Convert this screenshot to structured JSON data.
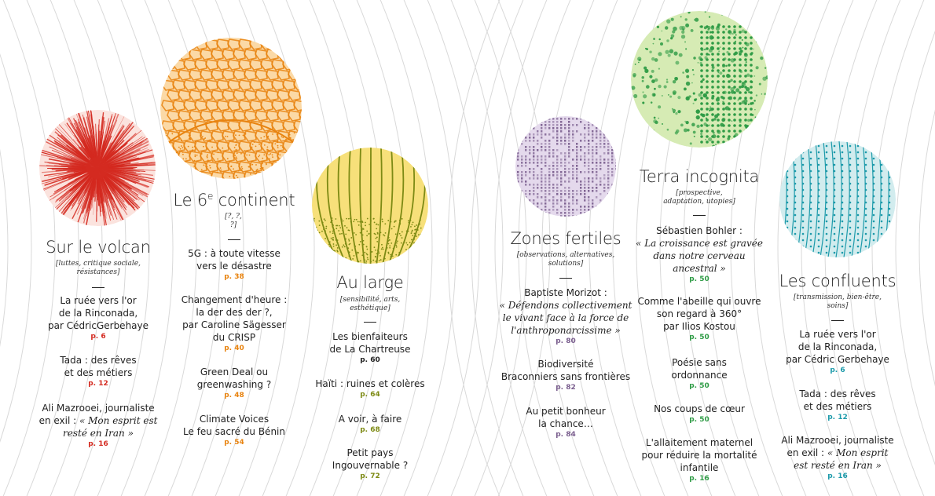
{
  "colors": {
    "volcan": "#d42a20",
    "continent": "#e8830f",
    "large": "#7d8a14",
    "fertiles": "#7a5e8e",
    "terra": "#2e9b45",
    "confluents": "#1c9aaa"
  },
  "sections": [
    {
      "key": "volcan",
      "title": "Sur le volcan",
      "subtitle": "[luttes, critique sociale, résistances]",
      "entries": [
        {
          "lines": [
            "La ruée vers l'or",
            "de la Rinconada,",
            "par CédricGerbehaye"
          ],
          "page": "p. 6"
        },
        {
          "lines": [
            "Tada : des rêves",
            "et des métiers"
          ],
          "page": "p. 12"
        },
        {
          "lines": [
            "Ali Mazrooei, journaliste",
            "en exil : « Mon esprit est",
            "resté en Iran »"
          ],
          "page": "p. 16"
        }
      ]
    },
    {
      "key": "continent",
      "title": "Le 6",
      "title_sup": "e",
      "title_rest": " continent",
      "subtitle": "[?, ?, ?]",
      "entries": [
        {
          "lines": [
            "5G : à toute vitesse",
            "vers le désastre"
          ],
          "page": "p. 38"
        },
        {
          "lines": [
            "Changement d'heure :",
            "la der des der ?,",
            "par Caroline Sägesser",
            "du CRISP"
          ],
          "page": "p. 40"
        },
        {
          "lines": [
            "Green Deal ou",
            "greenwashing ?"
          ],
          "page": "p. 48"
        },
        {
          "lines": [
            "Climate Voices",
            "Le feu sacré du Bénin"
          ],
          "page": "p. 54"
        }
      ]
    },
    {
      "key": "large",
      "title": "Au large",
      "subtitle": "[sensibilité, arts, esthétique]",
      "entries": [
        {
          "lines": [
            "Les bienfaiteurs",
            "de La Chartreuse"
          ],
          "page": "p. 60"
        },
        {
          "lines": [
            "Haïti : ruines et colères"
          ],
          "page": "p. 64"
        },
        {
          "lines": [
            "A voir, à faire"
          ],
          "page": "p. 68"
        },
        {
          "lines": [
            "Petit pays",
            "Ingouvernable ?"
          ],
          "page": "p. 72"
        }
      ]
    },
    {
      "key": "fertiles",
      "title": "Zones fertiles",
      "subtitle": "[observations, alternatives, solutions]",
      "entries": [
        {
          "lines": [
            "Baptiste Morizot :",
            "« Défendons collectivement",
            "le vivant face à la force de",
            "l'anthroponarcissime »"
          ],
          "page": "p. 80"
        },
        {
          "lines": [
            "Biodiversité",
            "Braconniers sans frontières"
          ],
          "page": "p. 82"
        },
        {
          "lines": [
            "Au petit bonheur",
            "la chance…"
          ],
          "page": "p. 84"
        }
      ]
    },
    {
      "key": "terra",
      "title": "Terra incognita",
      "subtitle": "[prospective, adaptation, utopies]",
      "entries": [
        {
          "lines": [
            "Sébastien Bohler :",
            "« La croissance est gravée",
            "dans notre cerveau",
            "ancestral »"
          ],
          "page": "p. 50"
        },
        {
          "lines": [
            "Comme l'abeille qui ouvre",
            "son regard à 360°",
            "par Ilios Kostou"
          ],
          "page": "p. 50"
        },
        {
          "lines": [
            "Poésie sans",
            "ordonnance"
          ],
          "page": "p. 50"
        },
        {
          "lines": [
            "Nos coups de cœur"
          ],
          "page": "p. 50"
        },
        {
          "lines": [
            "L'allaitement maternel",
            "pour réduire la mortalité",
            "infantile"
          ],
          "page": "p. 16"
        }
      ]
    },
    {
      "key": "confluents",
      "title": "Les confluents",
      "subtitle": "[transmission, bien-être, soins]",
      "entries": [
        {
          "lines": [
            "La ruée vers l'or",
            "de la Rinconada,",
            "par Cédric Gerbehaye"
          ],
          "page": "p. 6"
        },
        {
          "lines": [
            "Tada : des rêves",
            "et des métiers"
          ],
          "page": "p. 12"
        },
        {
          "lines": [
            "Ali Mazrooei, journaliste",
            "en exil : « Mon esprit",
            "est resté en Iran »"
          ],
          "page": "p. 16"
        }
      ]
    }
  ]
}
